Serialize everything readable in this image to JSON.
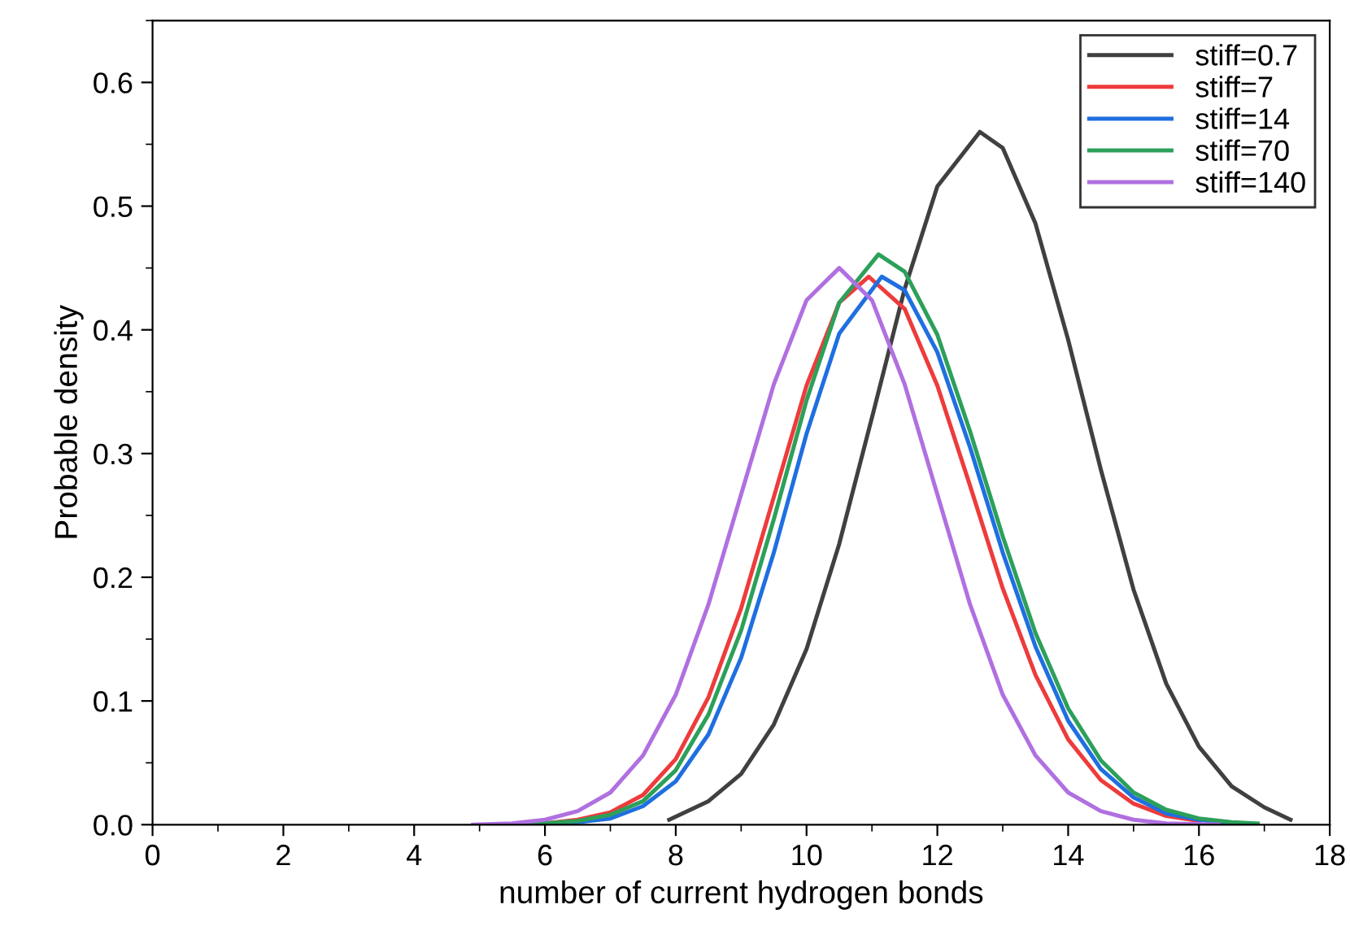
{
  "chart_data": {
    "type": "line",
    "xlabel": "number of current hydrogen bonds",
    "ylabel": "Probable density",
    "xlim": [
      0,
      18
    ],
    "xticks": [
      0,
      2,
      4,
      6,
      8,
      10,
      12,
      14,
      16,
      18
    ],
    "ylim": [
      0,
      0.65
    ],
    "yticks": [
      {
        "value": 0,
        "label": "0.0"
      },
      0.1,
      0.2,
      0.3,
      0.4,
      0.5,
      0.6
    ],
    "grid": false,
    "legend": "top right",
    "marker": "none",
    "line_style": "solid",
    "series": [
      {
        "name": "stiff=0.7",
        "color": "#404040",
        "x": [
          7.9,
          8.5,
          9,
          9.5,
          10,
          10.5,
          11,
          11.5,
          12,
          12.65,
          13,
          13.5,
          14,
          14.5,
          15,
          15.5,
          16,
          16.5,
          17,
          17.4
        ],
        "values": [
          0.004,
          0.019,
          0.041,
          0.081,
          0.142,
          0.227,
          0.329,
          0.433,
          0.516,
          0.56,
          0.547,
          0.486,
          0.392,
          0.287,
          0.19,
          0.114,
          0.063,
          0.031,
          0.014,
          0.004
        ]
      },
      {
        "name": "stiff=7",
        "color": "#ee3b3b",
        "x": [
          6,
          6.5,
          7,
          7.5,
          8,
          8.5,
          9,
          9.5,
          10,
          10.5,
          10.95,
          11.5,
          12,
          12.5,
          13,
          13.5,
          14,
          14.5,
          15,
          15.5,
          16
        ],
        "values": [
          0.001,
          0.004,
          0.01,
          0.024,
          0.053,
          0.103,
          0.175,
          0.265,
          0.355,
          0.422,
          0.443,
          0.417,
          0.355,
          0.274,
          0.191,
          0.121,
          0.069,
          0.036,
          0.017,
          0.007,
          0.003
        ]
      },
      {
        "name": "stiff=14",
        "color": "#1f6fe0",
        "x": [
          5.5,
          6,
          6.5,
          7,
          7.5,
          8,
          8.5,
          9,
          9.5,
          10,
          10.5,
          11.15,
          11.5,
          12,
          12.5,
          13,
          13.5,
          14,
          14.5,
          15,
          15.5,
          16,
          16.5
        ],
        "values": [
          0,
          0.001,
          0.002,
          0.005,
          0.015,
          0.035,
          0.073,
          0.135,
          0.22,
          0.316,
          0.397,
          0.443,
          0.432,
          0.382,
          0.305,
          0.22,
          0.144,
          0.084,
          0.045,
          0.022,
          0.009,
          0.004,
          0.001
        ]
      },
      {
        "name": "stiff=70",
        "color": "#2ca05a",
        "x": [
          5.5,
          6,
          6.5,
          7,
          7.5,
          8,
          8.5,
          9,
          9.5,
          10,
          10.5,
          11.1,
          11.5,
          12,
          12.5,
          13,
          13.5,
          14,
          14.5,
          15,
          15.5,
          16,
          16.5,
          16.9
        ],
        "values": [
          0,
          0.001,
          0.003,
          0.008,
          0.019,
          0.044,
          0.089,
          0.157,
          0.247,
          0.343,
          0.422,
          0.461,
          0.447,
          0.396,
          0.318,
          0.233,
          0.155,
          0.094,
          0.052,
          0.026,
          0.012,
          0.005,
          0.002,
          0.001
        ]
      },
      {
        "name": "stiff=140",
        "color": "#b070e0",
        "x": [
          4.9,
          5.5,
          6,
          6.5,
          7,
          7.5,
          8,
          8.5,
          9,
          9.5,
          10,
          10.5,
          11,
          11.5,
          12,
          12.5,
          13,
          13.5,
          14,
          14.5,
          15,
          15.5,
          16.3
        ],
        "values": [
          0,
          0.001,
          0.004,
          0.011,
          0.026,
          0.056,
          0.105,
          0.178,
          0.267,
          0.356,
          0.424,
          0.45,
          0.424,
          0.356,
          0.267,
          0.178,
          0.105,
          0.056,
          0.026,
          0.011,
          0.004,
          0.001,
          0
        ]
      }
    ]
  }
}
